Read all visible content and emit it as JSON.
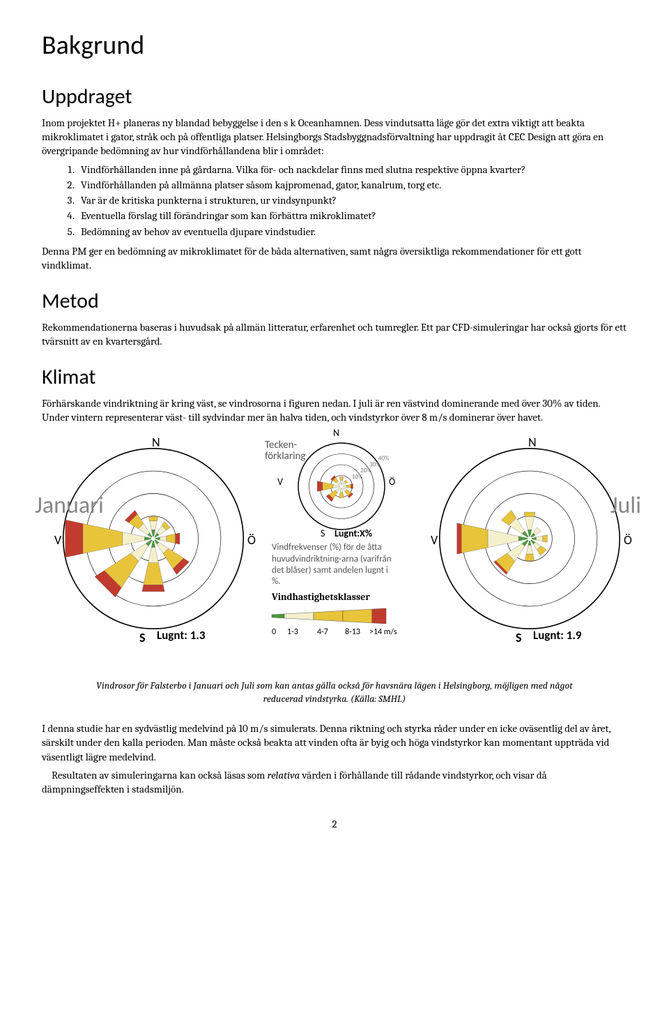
{
  "h1": "Bakgrund",
  "h2_uppdraget": "Uppdraget",
  "p_uppdraget": "Inom projektet H+ planeras ny blandad bebyggelse i den s k Oceanhamnen. Dess vindutsatta läge gör det extra viktigt att beakta mikroklimatet i gator, stråk och på offentliga platser. Helsingborgs Stadsbyggnadsförvaltning har uppdragit åt CEC Design att göra en övergripande bedömning av hur vindförhållandena blir i området:",
  "list": [
    "Vindförhållanden inne på gårdarna. Vilka för- och nackdelar finns med slutna respektive öppna kvarter?",
    "Vindförhållanden på allmänna platser såsom kajpromenad, gator, kanalrum, torg etc.",
    "Var är de kritiska punkterna i strukturen, ur vindsynpunkt?",
    "Eventuella förslag till förändringar som kan förbättra mikroklimatet?",
    "Bedömning av behov av eventuella djupare vindstudier."
  ],
  "p_conclusion": "Denna PM ger en bedömning av mikroklimatet för de båda alternativen, samt några översiktliga rekommendationer för ett gott vindklimat.",
  "h2_metod": "Metod",
  "p_metod": "Rekommendationerna baseras i huvudsak på allmän litteratur, erfarenhet och tumregler. Ett par CFD-simuleringar har också gjorts för ett tvärsnitt av en kvartersgård.",
  "h2_klimat": "Klimat",
  "p_klimat": "Förhärskande vindriktning är kring väst, se vindrosorna i figuren nedan. I juli är ren västvind dominerande med över 30% av tiden. Under vintern representerar väst- till sydvindar mer än halva tiden, och vindstyrkor över 8 m/s dominerar över havet.",
  "caption": "Vindrosor för Falsterbo i Januari och Juli som kan antas gälla också för havsnära lägen i Helsingborg, möjligen med något reducerad vindstyrka. (Källa: SMHI.)",
  "p_study1": "I denna studie har en sydvästlig medelvind på 10 m/s simulerats. Denna riktning och styrka råder under en icke oväsentlig del av året, särskilt under den kalla perioden. Man måste också beakta att vinden ofta är byig och höga vindstyrkor kan momentant uppträda vid väsentligt lägre medelvind.",
  "p_study2_pre": "Resultaten av simuleringarna kan också läsas som ",
  "p_study2_em": "relativa",
  "p_study2_post": " värden i förhållande till rådande vindstyrkor, och visar då dämpningseffekten i stadsmiljön.",
  "page_number": "2",
  "colors": {
    "green": "#4a9b3a",
    "cream": "#f5f0cc",
    "yellow": "#e8c43a",
    "red": "#c13b2e",
    "gray_text": "#888888",
    "legend_gray": "#555555"
  },
  "figure": {
    "januari": {
      "label": "Januari",
      "compass": {
        "N": "N",
        "S": "S",
        "V": "V",
        "O": "Ö"
      },
      "lugnt": "Lugnt: 1.3",
      "circles": [
        100,
        75,
        50,
        25
      ],
      "petals": [
        {
          "dir": 0,
          "segs": [
            {
              "r": 3,
              "c": "#4a9b3a"
            },
            {
              "r": 4,
              "c": "#f5f0cc"
            },
            {
              "r": 2,
              "c": "#e8c43a"
            }
          ]
        },
        {
          "dir": 45,
          "segs": [
            {
              "r": 2,
              "c": "#4a9b3a"
            },
            {
              "r": 4,
              "c": "#f5f0cc"
            },
            {
              "r": 2,
              "c": "#e8c43a"
            }
          ]
        },
        {
          "dir": 90,
          "segs": [
            {
              "r": 2,
              "c": "#4a9b3a"
            },
            {
              "r": 3,
              "c": "#f5f0cc"
            },
            {
              "r": 4,
              "c": "#e8c43a"
            },
            {
              "r": 2,
              "c": "#c13b2e"
            }
          ]
        },
        {
          "dir": 135,
          "segs": [
            {
              "r": 2,
              "c": "#4a9b3a"
            },
            {
              "r": 5,
              "c": "#f5f0cc"
            },
            {
              "r": 8,
              "c": "#e8c43a"
            },
            {
              "r": 3,
              "c": "#c13b2e"
            }
          ]
        },
        {
          "dir": 180,
          "segs": [
            {
              "r": 3,
              "c": "#4a9b3a"
            },
            {
              "r": 7,
              "c": "#f5f0cc"
            },
            {
              "r": 10,
              "c": "#e8c43a"
            },
            {
              "r": 3,
              "c": "#c13b2e"
            }
          ]
        },
        {
          "dir": 225,
          "segs": [
            {
              "r": 3,
              "c": "#4a9b3a"
            },
            {
              "r": 8,
              "c": "#f5f0cc"
            },
            {
              "r": 14,
              "c": "#e8c43a"
            },
            {
              "r": 5,
              "c": "#c13b2e"
            }
          ]
        },
        {
          "dir": 270,
          "segs": [
            {
              "r": 3,
              "c": "#4a9b3a"
            },
            {
              "r": 10,
              "c": "#f5f0cc"
            },
            {
              "r": 18,
              "c": "#e8c43a"
            },
            {
              "r": 8,
              "c": "#c13b2e"
            }
          ]
        },
        {
          "dir": 315,
          "segs": [
            {
              "r": 2,
              "c": "#4a9b3a"
            },
            {
              "r": 5,
              "c": "#f5f0cc"
            },
            {
              "r": 5,
              "c": "#e8c43a"
            },
            {
              "r": 2,
              "c": "#c13b2e"
            }
          ]
        }
      ]
    },
    "juli": {
      "label": "Juli",
      "compass": {
        "N": "N",
        "S": "S",
        "V": "V",
        "O": "Ö"
      },
      "lugnt": "Lugnt: 1.9",
      "circles": [
        100,
        75,
        50,
        25
      ],
      "petals": [
        {
          "dir": 0,
          "segs": [
            {
              "r": 3,
              "c": "#4a9b3a"
            },
            {
              "r": 6,
              "c": "#f5f0cc"
            },
            {
              "r": 2,
              "c": "#e8c43a"
            }
          ]
        },
        {
          "dir": 45,
          "segs": [
            {
              "r": 2,
              "c": "#4a9b3a"
            },
            {
              "r": 3,
              "c": "#f5f0cc"
            }
          ]
        },
        {
          "dir": 90,
          "segs": [
            {
              "r": 2,
              "c": "#4a9b3a"
            },
            {
              "r": 3,
              "c": "#f5f0cc"
            },
            {
              "r": 2,
              "c": "#e8c43a"
            }
          ]
        },
        {
          "dir": 135,
          "segs": [
            {
              "r": 2,
              "c": "#4a9b3a"
            },
            {
              "r": 3,
              "c": "#f5f0cc"
            },
            {
              "r": 3,
              "c": "#e8c43a"
            }
          ]
        },
        {
          "dir": 180,
          "segs": [
            {
              "r": 2,
              "c": "#4a9b3a"
            },
            {
              "r": 4,
              "c": "#f5f0cc"
            },
            {
              "r": 3,
              "c": "#e8c43a"
            }
          ]
        },
        {
          "dir": 225,
          "segs": [
            {
              "r": 3,
              "c": "#4a9b3a"
            },
            {
              "r": 8,
              "c": "#f5f0cc"
            },
            {
              "r": 6,
              "c": "#e8c43a"
            },
            {
              "r": 1,
              "c": "#c13b2e"
            }
          ]
        },
        {
          "dir": 270,
          "segs": [
            {
              "r": 4,
              "c": "#4a9b3a"
            },
            {
              "r": 14,
              "c": "#f5f0cc"
            },
            {
              "r": 12,
              "c": "#e8c43a"
            },
            {
              "r": 2,
              "c": "#c13b2e"
            }
          ]
        },
        {
          "dir": 315,
          "segs": [
            {
              "r": 3,
              "c": "#4a9b3a"
            },
            {
              "r": 7,
              "c": "#f5f0cc"
            },
            {
              "r": 4,
              "c": "#e8c43a"
            }
          ]
        }
      ]
    },
    "legend": {
      "title1": "Tecken-",
      "title2": "förklaring",
      "compass": {
        "N": "N",
        "S": "S",
        "V": "V",
        "O": "Ö"
      },
      "rings": [
        "10%",
        "20%",
        "30%",
        "40%"
      ],
      "lugnt_label": "Lugnt:X%",
      "desc": "Vindfrekvenser (%) för de åtta huvudvindriktning-arna (varifrån det blåser) samt andelen lugnt i %.",
      "class_title": "Vindhastighetsklasser",
      "scale": [
        "0",
        "1-3",
        "4-7",
        "8-13",
        ">14 m/s"
      ],
      "petals": [
        {
          "dir": 0,
          "segs": [
            {
              "r": 4,
              "c": "#f5f0cc"
            },
            {
              "r": 3,
              "c": "#e8c43a"
            }
          ]
        },
        {
          "dir": 45,
          "segs": [
            {
              "r": 3,
              "c": "#f5f0cc"
            },
            {
              "r": 2,
              "c": "#e8c43a"
            }
          ]
        },
        {
          "dir": 90,
          "segs": [
            {
              "r": 3,
              "c": "#f5f0cc"
            },
            {
              "r": 4,
              "c": "#e8c43a"
            },
            {
              "r": 2,
              "c": "#c13b2e"
            }
          ]
        },
        {
          "dir": 135,
          "segs": [
            {
              "r": 4,
              "c": "#f5f0cc"
            },
            {
              "r": 5,
              "c": "#e8c43a"
            },
            {
              "r": 2,
              "c": "#c13b2e"
            }
          ]
        },
        {
          "dir": 180,
          "segs": [
            {
              "r": 4,
              "c": "#f5f0cc"
            },
            {
              "r": 5,
              "c": "#e8c43a"
            }
          ]
        },
        {
          "dir": 225,
          "segs": [
            {
              "r": 5,
              "c": "#f5f0cc"
            },
            {
              "r": 7,
              "c": "#e8c43a"
            },
            {
              "r": 3,
              "c": "#c13b2e"
            }
          ]
        },
        {
          "dir": 270,
          "segs": [
            {
              "r": 6,
              "c": "#f5f0cc"
            },
            {
              "r": 10,
              "c": "#e8c43a"
            },
            {
              "r": 5,
              "c": "#c13b2e"
            }
          ]
        },
        {
          "dir": 315,
          "segs": [
            {
              "r": 4,
              "c": "#f5f0cc"
            },
            {
              "r": 4,
              "c": "#e8c43a"
            },
            {
              "r": 2,
              "c": "#c13b2e"
            }
          ]
        }
      ]
    }
  }
}
